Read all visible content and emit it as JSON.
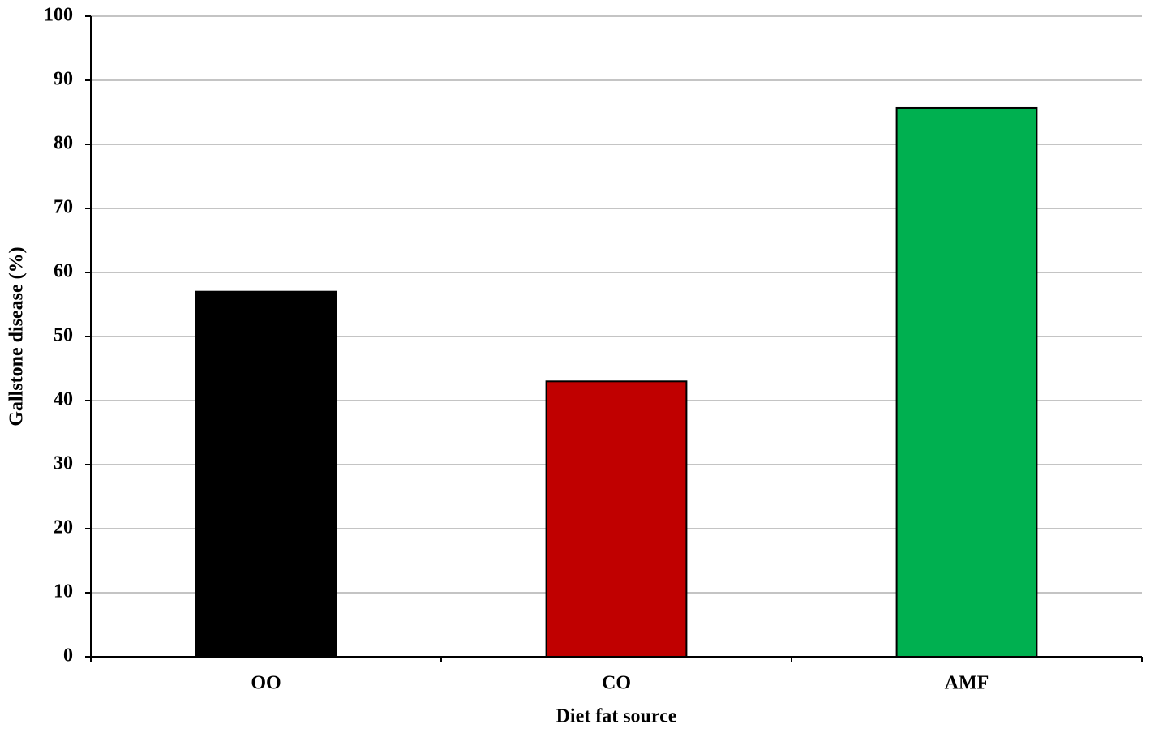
{
  "chart_data": {
    "type": "bar",
    "x_label": "Diet fat source",
    "y_label": "Gallstone disease (%)",
    "categories": [
      "OO",
      "CO",
      "AMF"
    ],
    "values": [
      57,
      43,
      85.7
    ],
    "colors": [
      "#000000",
      "#c00000",
      "#00b050"
    ],
    "ylim": [
      0,
      100
    ],
    "yticks": [
      0,
      10,
      20,
      30,
      40,
      50,
      60,
      70,
      80,
      90,
      100
    ],
    "grid": true
  }
}
